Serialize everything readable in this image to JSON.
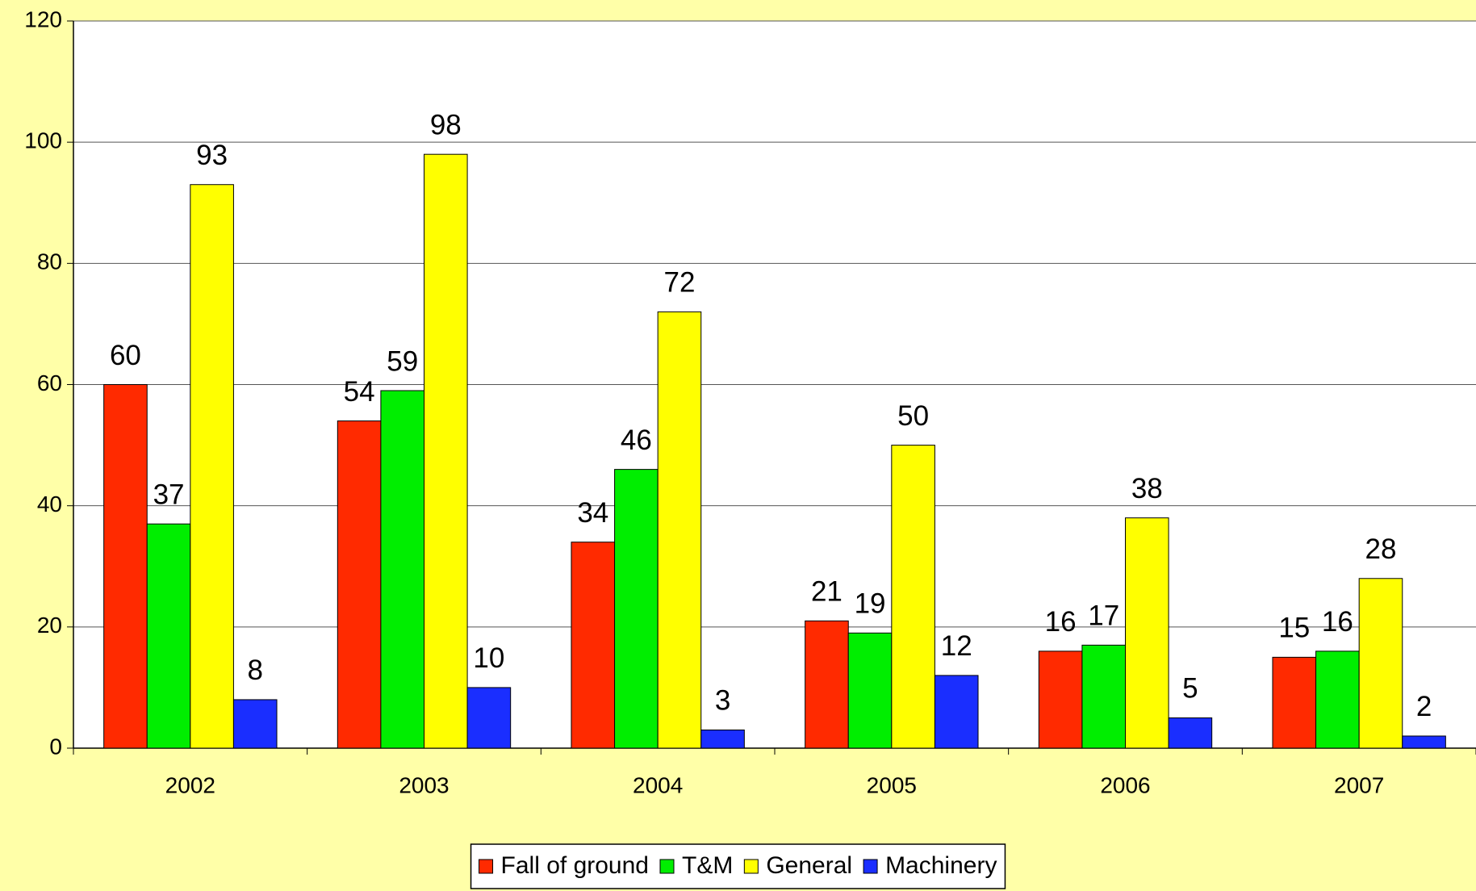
{
  "chart_data": {
    "type": "bar",
    "categories": [
      "2002",
      "2003",
      "2004",
      "2005",
      "2006",
      "2007"
    ],
    "series": [
      {
        "name": "Fall of ground",
        "color": "#FF2A00",
        "values": [
          60,
          54,
          34,
          21,
          16,
          15
        ]
      },
      {
        "name": "T&M",
        "color": "#00EE00",
        "values": [
          37,
          59,
          46,
          19,
          17,
          16
        ]
      },
      {
        "name": "General",
        "color": "#FFFF00",
        "values": [
          93,
          98,
          72,
          50,
          38,
          28
        ]
      },
      {
        "name": "Machinery",
        "color": "#1A2EFF",
        "values": [
          8,
          10,
          3,
          12,
          5,
          2
        ]
      }
    ],
    "ylim": [
      0,
      120
    ],
    "yticks": [
      0,
      20,
      40,
      60,
      80,
      100,
      120
    ],
    "grid": true,
    "legend": "bottom"
  }
}
